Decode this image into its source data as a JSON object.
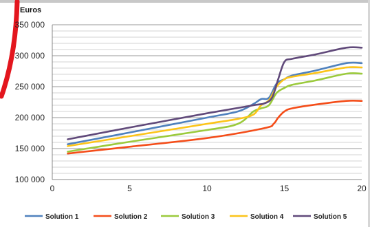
{
  "chart_data": {
    "type": "line",
    "ylabel": "Euros",
    "xlim": [
      0,
      20
    ],
    "ylim": [
      100000,
      350000
    ],
    "x_ticks": [
      "0",
      "5",
      "10",
      "15",
      "20"
    ],
    "y_ticks": [
      "100 000",
      "150 000",
      "200 000",
      "250 000",
      "300 000",
      "350 000"
    ],
    "grid": true,
    "legend_position": "bottom",
    "series": [
      {
        "name": "Solution 1",
        "color": "#4f81bd",
        "points": [
          [
            1,
            157000
          ],
          [
            5,
            176000
          ],
          [
            10,
            200000
          ],
          [
            12,
            210000
          ],
          [
            13,
            222000
          ],
          [
            13.5,
            230000
          ],
          [
            14,
            232000
          ],
          [
            14.5,
            255000
          ],
          [
            15,
            262000
          ],
          [
            15.5,
            268000
          ],
          [
            17,
            276000
          ],
          [
            19,
            288000
          ],
          [
            20,
            288000
          ]
        ]
      },
      {
        "name": "Solution 2",
        "color": "#f44d19",
        "points": [
          [
            1,
            142000
          ],
          [
            5,
            153000
          ],
          [
            10,
            167000
          ],
          [
            13.7,
            183000
          ],
          [
            14.3,
            190000
          ],
          [
            14.6,
            200000
          ],
          [
            15,
            210000
          ],
          [
            15.5,
            215000
          ],
          [
            17,
            221000
          ],
          [
            19,
            227000
          ],
          [
            20,
            227000
          ]
        ]
      },
      {
        "name": "Solution 3",
        "color": "#9bca3c",
        "points": [
          [
            1,
            145000
          ],
          [
            5,
            161000
          ],
          [
            10,
            180000
          ],
          [
            12,
            190000
          ],
          [
            13,
            210000
          ],
          [
            13.5,
            215000
          ],
          [
            14,
            220000
          ],
          [
            14.5,
            240000
          ],
          [
            15,
            248000
          ],
          [
            15.5,
            253000
          ],
          [
            17,
            260000
          ],
          [
            19,
            271000
          ],
          [
            20,
            271000
          ]
        ]
      },
      {
        "name": "Solution 4",
        "color": "#fcc419",
        "points": [
          [
            1,
            154000
          ],
          [
            5,
            170000
          ],
          [
            10,
            190000
          ],
          [
            12,
            198000
          ],
          [
            13,
            205000
          ],
          [
            13.5,
            220000
          ],
          [
            14,
            228000
          ],
          [
            14.5,
            250000
          ],
          [
            15,
            262000
          ],
          [
            15.5,
            266000
          ],
          [
            17,
            272000
          ],
          [
            19,
            281000
          ],
          [
            20,
            281000
          ]
        ]
      },
      {
        "name": "Solution 5",
        "color": "#60497a",
        "points": [
          [
            1,
            165000
          ],
          [
            5,
            184000
          ],
          [
            10,
            207000
          ],
          [
            13,
            220000
          ],
          [
            13.7,
            223000
          ],
          [
            14.2,
            232000
          ],
          [
            14.6,
            262000
          ],
          [
            15,
            290000
          ],
          [
            15.5,
            295000
          ],
          [
            17,
            302000
          ],
          [
            19,
            313000
          ],
          [
            20,
            313000
          ]
        ]
      }
    ]
  }
}
